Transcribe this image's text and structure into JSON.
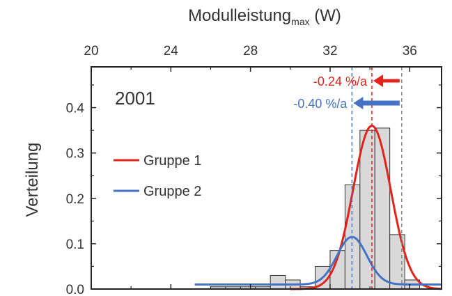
{
  "chart_data": {
    "type": "bar",
    "title": "2001",
    "x_axis_top": {
      "label_main": "Modulleistung",
      "label_sub": "max",
      "label_unit": " (W)",
      "ticks": [
        20,
        24,
        28,
        32,
        36
      ],
      "xlim": [
        20,
        37.6
      ]
    },
    "y_axis": {
      "label": "Verteilung",
      "ticks": [
        "0.0",
        "0.1",
        "0.2",
        "0.3",
        "0.4"
      ],
      "tick_values": [
        0.0,
        0.1,
        0.2,
        0.3,
        0.4
      ],
      "ylim": [
        0,
        0.49
      ]
    },
    "histogram": {
      "bin_width": 0.75,
      "bin_centers": [
        26.375,
        27.125,
        27.875,
        28.625,
        29.375,
        30.125,
        30.875,
        31.625,
        32.375,
        33.125,
        33.875,
        34.625,
        35.375,
        36.125
      ],
      "values": [
        0.005,
        0.005,
        0.005,
        0.005,
        0.03,
        0.02,
        0.005,
        0.05,
        0.085,
        0.23,
        0.35,
        0.355,
        0.12,
        0.02
      ],
      "fill": "#d9d9d9",
      "stroke": "#333333"
    },
    "series": [
      {
        "name": "Gruppe 1",
        "color": "#e2231a",
        "type": "gaussian",
        "mean": 34.1,
        "sigma": 0.95,
        "peak": 0.36,
        "x_range": [
          30.0,
          37.6
        ]
      },
      {
        "name": "Gruppe 2",
        "color": "#4472c4",
        "type": "gaussian+baseline",
        "mean": 33.1,
        "sigma": 0.75,
        "peak": 0.115,
        "baseline": 0.01,
        "x_range": [
          25.2,
          37.6
        ]
      }
    ],
    "legend": {
      "position": "middle-left",
      "entries": [
        "Gruppe 1",
        "Gruppe 2"
      ]
    },
    "reference_lines": [
      {
        "x": 35.6,
        "color": "#888888",
        "style": "dashed"
      },
      {
        "x": 34.1,
        "color": "#e2231a",
        "style": "dashed"
      },
      {
        "x": 33.1,
        "color": "#4472c4",
        "style": "dashed"
      }
    ],
    "annotations": [
      {
        "text": "-0.24 %/a",
        "color": "#e2231a",
        "arrow_from": 35.6,
        "arrow_to": 34.1
      },
      {
        "text": "-0.40 %/a",
        "color": "#4472c4",
        "arrow_from": 35.6,
        "arrow_to": 33.1
      }
    ],
    "grid": false
  }
}
